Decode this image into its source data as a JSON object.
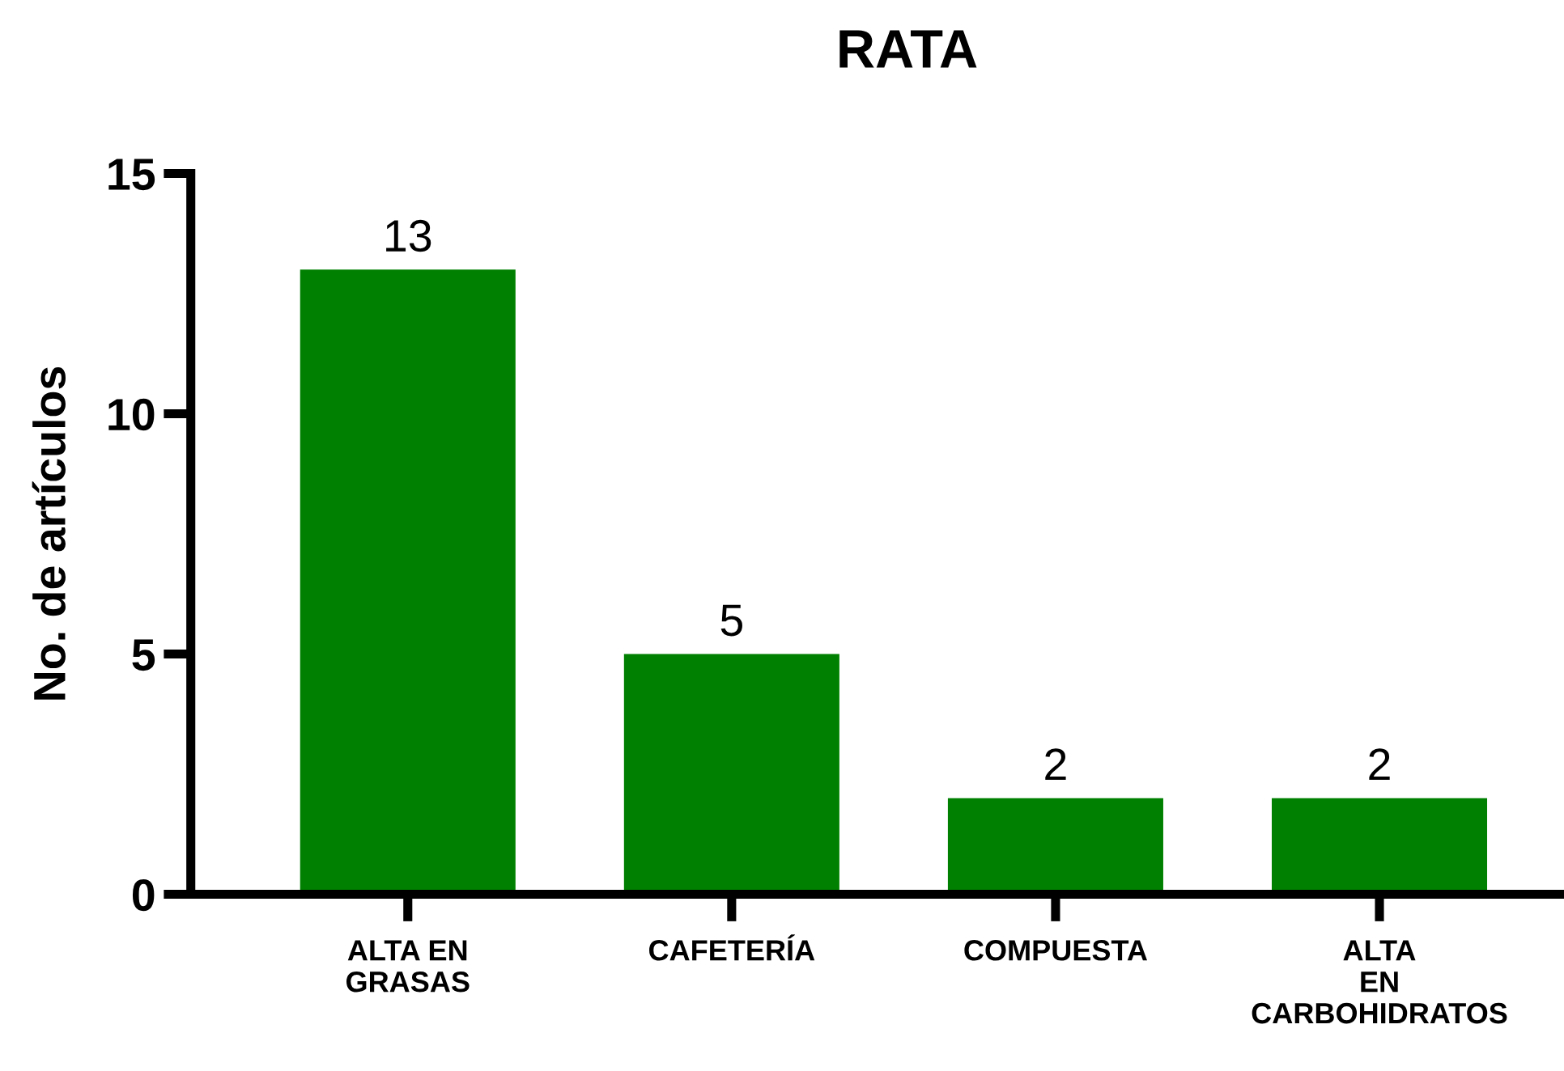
{
  "chart_data": {
    "type": "bar",
    "title": "RATA",
    "ylabel": "No. de artículos",
    "categories": [
      "ALTA EN\nGRASAS",
      "CAFETERÍA",
      "COMPUESTA",
      "ALTA\nEN\nCARBOHIDRATOS"
    ],
    "values": [
      13,
      5,
      2,
      2
    ],
    "color": "#008000",
    "ylim": [
      0,
      15
    ],
    "yticks": [
      0,
      5,
      10,
      15
    ],
    "grid": false,
    "data_labels": true
  }
}
